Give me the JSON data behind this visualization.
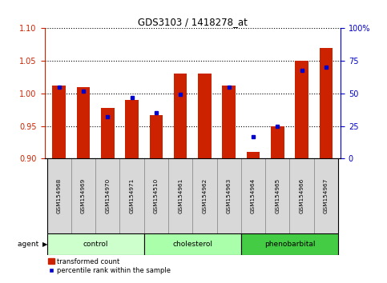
{
  "title": "GDS3103 / 1418278_at",
  "samples": [
    "GSM154968",
    "GSM154969",
    "GSM154970",
    "GSM154971",
    "GSM154510",
    "GSM154961",
    "GSM154962",
    "GSM154963",
    "GSM154964",
    "GSM154965",
    "GSM154966",
    "GSM154967"
  ],
  "red_values": [
    1.012,
    1.01,
    0.978,
    0.99,
    0.967,
    1.03,
    1.03,
    1.012,
    0.91,
    0.95,
    1.05,
    1.07
  ],
  "blue_values": [
    55,
    52,
    32,
    47,
    35,
    49,
    0,
    55,
    17,
    25,
    68,
    70
  ],
  "blue_has_marker": [
    true,
    true,
    true,
    true,
    true,
    true,
    false,
    true,
    true,
    true,
    true,
    true
  ],
  "ylim_left": [
    0.9,
    1.1
  ],
  "ylim_right": [
    0,
    100
  ],
  "yticks_left": [
    0.9,
    0.95,
    1.0,
    1.05,
    1.1
  ],
  "yticks_right": [
    0,
    25,
    50,
    75,
    100
  ],
  "ytick_labels_right": [
    "0",
    "25",
    "50",
    "75",
    "100%"
  ],
  "agent_groups": [
    {
      "label": "control",
      "start": 0,
      "end": 4,
      "color": "#ccffcc"
    },
    {
      "label": "cholesterol",
      "start": 4,
      "end": 8,
      "color": "#aaffaa"
    },
    {
      "label": "phenobarbital",
      "start": 8,
      "end": 12,
      "color": "#44cc44"
    }
  ],
  "bar_color_red": "#cc2200",
  "bar_color_blue": "#0000cc",
  "baseline": 0.9,
  "bar_width": 0.55,
  "grid_color": "#000000",
  "tick_label_color_left": "#cc2200",
  "tick_label_color_right": "#0000cc"
}
